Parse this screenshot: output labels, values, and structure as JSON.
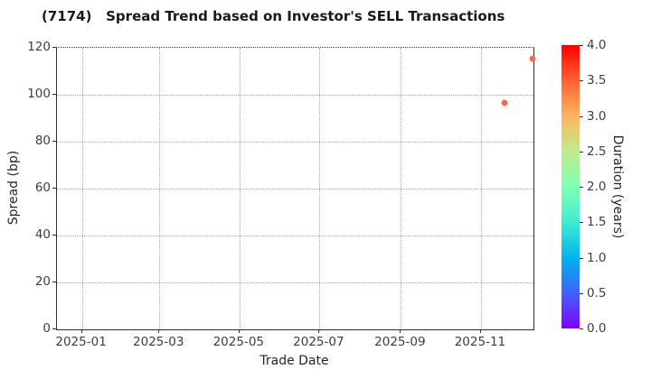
{
  "chart_data": {
    "type": "scatter",
    "title": "(7174)   Spread Trend based on Investor's SELL Transactions",
    "xlabel": "Trade Date",
    "ylabel": "Spread (bp)",
    "xlim": [
      "2024-12-13",
      "2025-12-11"
    ],
    "ylim": [
      0,
      120
    ],
    "x_ticks": [
      {
        "label": "2025-01",
        "date": "2025-01-01"
      },
      {
        "label": "2025-03",
        "date": "2025-03-01"
      },
      {
        "label": "2025-05",
        "date": "2025-05-01"
      },
      {
        "label": "2025-07",
        "date": "2025-07-01"
      },
      {
        "label": "2025-09",
        "date": "2025-09-01"
      },
      {
        "label": "2025-11",
        "date": "2025-11-01"
      }
    ],
    "y_ticks": [
      0,
      20,
      40,
      60,
      80,
      100,
      120
    ],
    "grid": true,
    "legend": "none",
    "points": [
      {
        "date": "2025-11-19",
        "spread_bp": 96.5,
        "duration_years": 3.4
      },
      {
        "date": "2025-12-10",
        "spread_bp": 115.5,
        "duration_years": 3.4
      }
    ],
    "marker_color": "#fa6a44",
    "colorbar": {
      "label": "Duration (years)",
      "min": 0.0,
      "max": 4.0,
      "ticks": [
        0.0,
        0.5,
        1.0,
        1.5,
        2.0,
        2.5,
        3.0,
        3.5,
        4.0
      ],
      "colormap": "rainbow",
      "stops": [
        {
          "value": 0.0,
          "color": "#8000ff"
        },
        {
          "value": 0.5,
          "color": "#4062fa"
        },
        {
          "value": 1.0,
          "color": "#00b4ec"
        },
        {
          "value": 1.5,
          "color": "#40ecd4"
        },
        {
          "value": 2.0,
          "color": "#80ffb4"
        },
        {
          "value": 2.5,
          "color": "#bfec8e"
        },
        {
          "value": 3.0,
          "color": "#ffb461"
        },
        {
          "value": 3.5,
          "color": "#ff6132"
        },
        {
          "value": 4.0,
          "color": "#ff0000"
        }
      ]
    }
  }
}
